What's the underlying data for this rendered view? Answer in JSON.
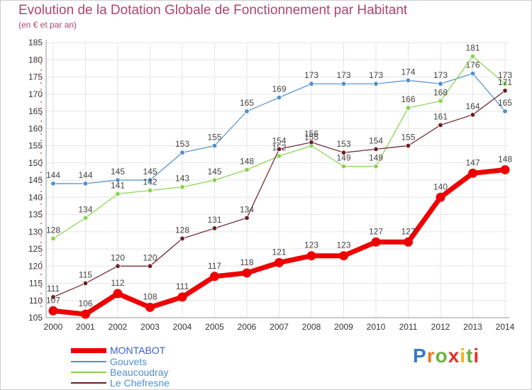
{
  "title": "Evolution de la Dotation Globale de Fonctionnement par Habitant",
  "subtitle": "(en € et par an)",
  "logo": {
    "text": "Proxiti",
    "colors": [
      "#3a78c4",
      "#e87d1e",
      "#6cb33f",
      "#e0322b",
      "#f2b51b",
      "#6cb33f",
      "#e0322b"
    ]
  },
  "chart_data": {
    "type": "line",
    "x": [
      2000,
      2001,
      2002,
      2003,
      2004,
      2005,
      2006,
      2007,
      2008,
      2009,
      2010,
      2011,
      2012,
      2013,
      2014
    ],
    "ylim": [
      105,
      185
    ],
    "yticks": [
      105,
      110,
      115,
      120,
      125,
      130,
      135,
      140,
      145,
      150,
      155,
      160,
      165,
      170,
      175,
      180,
      185
    ],
    "grid": true,
    "legend": "bottom-left",
    "series": [
      {
        "name": "Gouvets",
        "color": "#4f8fd0",
        "values": [
          144,
          144,
          145,
          145,
          153,
          155,
          165,
          169,
          173,
          173,
          173,
          174,
          173,
          176,
          165
        ]
      },
      {
        "name": "Beaucoudray",
        "color": "#88d24e",
        "values": [
          128,
          134,
          141,
          142,
          143,
          145,
          148,
          152,
          155,
          149,
          149,
          166,
          168,
          181,
          173
        ]
      },
      {
        "name": "Le Chefresne",
        "color": "#6b1d26",
        "values": [
          111,
          115,
          120,
          120,
          128,
          131,
          134,
          154,
          156,
          153,
          154,
          155,
          161,
          164,
          171
        ]
      },
      {
        "name": "MONTABOT",
        "color": "#ee0000",
        "values": [
          107,
          106,
          112,
          108,
          111,
          117,
          118,
          121,
          123,
          123,
          127,
          127,
          140,
          147,
          148
        ]
      }
    ],
    "legend_items": [
      {
        "name": "MONTABOT",
        "color": "#ee0000"
      },
      {
        "name": "Gouvets",
        "color": "#4f8fd0"
      },
      {
        "name": "Beaucoudray",
        "color": "#88d24e"
      },
      {
        "name": "Le Chefresne",
        "color": "#6b1d26"
      }
    ]
  }
}
